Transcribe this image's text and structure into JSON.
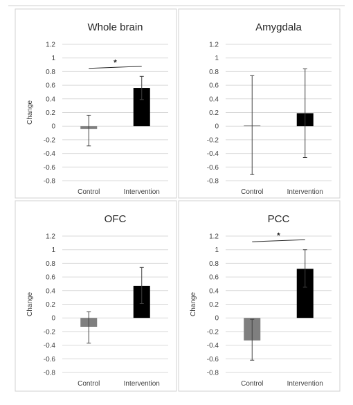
{
  "colors": {
    "control": "#7f7f7f",
    "intervention": "#000000"
  },
  "chart_data": [
    {
      "type": "bar",
      "title": "Whole brain",
      "ylabel": "Change",
      "categories": [
        "Control",
        "Intervention"
      ],
      "values": [
        -0.04,
        0.56
      ],
      "error_low": [
        -0.29,
        0.39
      ],
      "error_high": [
        0.16,
        0.73
      ],
      "ylim": [
        -0.8,
        1.2
      ],
      "yticks": [
        1.2,
        1,
        0.8,
        0.6,
        0.4,
        0.2,
        0,
        -0.2,
        -0.4,
        -0.6,
        -0.8
      ],
      "significance": "*",
      "grid": true
    },
    {
      "type": "bar",
      "title": "Amygdala",
      "ylabel": "",
      "categories": [
        "Control",
        "Intervention"
      ],
      "values": [
        0.01,
        0.19
      ],
      "error_low": [
        -0.71,
        -0.46
      ],
      "error_high": [
        0.74,
        0.84
      ],
      "ylim": [
        -0.8,
        1.2
      ],
      "yticks": [
        1.2,
        1,
        0.8,
        0.6,
        0.4,
        0.2,
        0,
        -0.2,
        -0.4,
        -0.6,
        -0.8
      ],
      "significance": "",
      "grid": true
    },
    {
      "type": "bar",
      "title": "OFC",
      "ylabel": "Change",
      "categories": [
        "Control",
        "Intervention"
      ],
      "values": [
        -0.13,
        0.47
      ],
      "error_low": [
        -0.37,
        0.21
      ],
      "error_high": [
        0.09,
        0.74
      ],
      "ylim": [
        -0.8,
        1.2
      ],
      "yticks": [
        1.2,
        1,
        0.8,
        0.6,
        0.4,
        0.2,
        0,
        -0.2,
        -0.4,
        -0.6,
        -0.8
      ],
      "significance": "",
      "grid": true
    },
    {
      "type": "bar",
      "title": "PCC",
      "ylabel": "Change",
      "categories": [
        "Control",
        "Intervention"
      ],
      "values": [
        -0.33,
        0.72
      ],
      "error_low": [
        -0.62,
        0.45
      ],
      "error_high": [
        -0.02,
        1.0
      ],
      "ylim": [
        -0.8,
        1.2
      ],
      "yticks": [
        1.2,
        1,
        0.8,
        0.6,
        0.4,
        0.2,
        0,
        -0.2,
        -0.4,
        -0.6,
        -0.8
      ],
      "significance": "*",
      "grid": true
    }
  ]
}
